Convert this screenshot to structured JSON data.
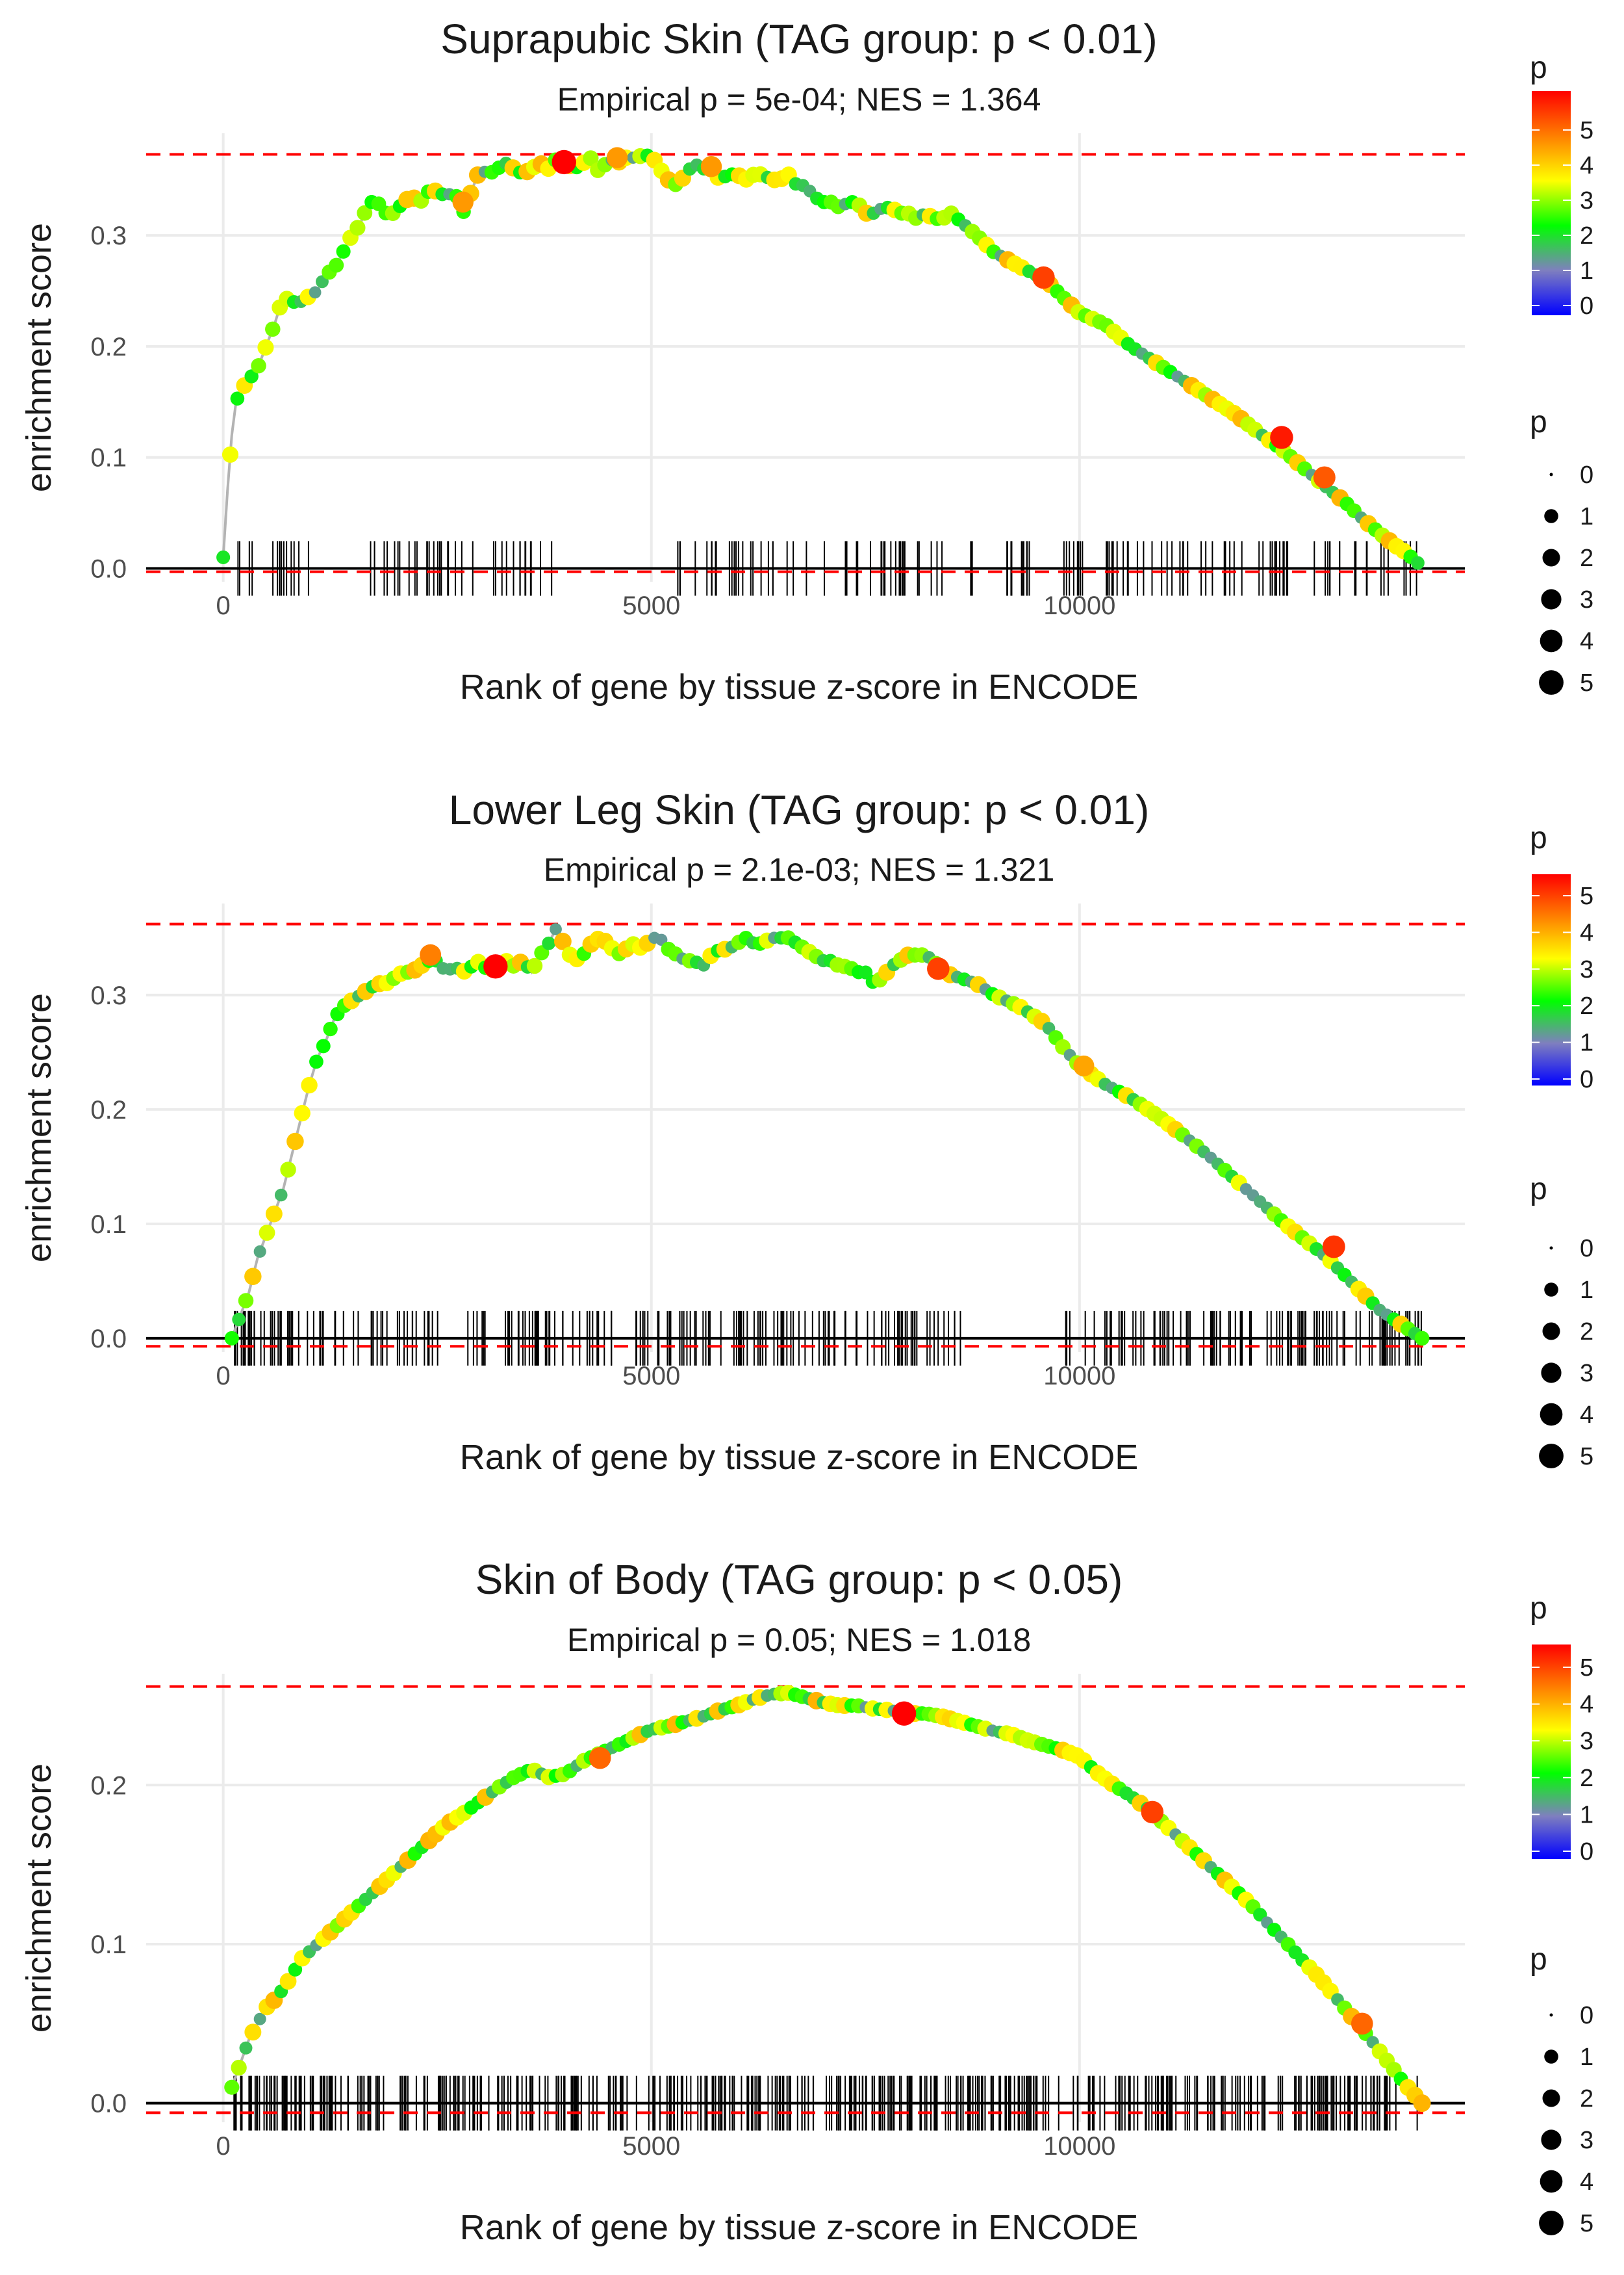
{
  "colors": {
    "threshold_line": "#ff0000",
    "curve_line": "#b3b3b3",
    "grid": "#ebebeb",
    "rug": "#000000",
    "gradient": [
      "#0000ff",
      "#7f7fbf",
      "#00ff00",
      "#ffff00",
      "#ff7f00",
      "#ff0000"
    ]
  },
  "chart_data": [
    {
      "type": "line",
      "title": "Suprapubic Skin (TAG group: p < 0.01)",
      "subtitle": "Empirical p = 5e-04; NES = 1.364",
      "xlabel": "Rank of gene by tissue z-score in ENCODE",
      "ylabel": "enrichment score",
      "xlim": [
        -900,
        14500
      ],
      "ylim": [
        -0.012,
        0.392
      ],
      "x_ticks": [
        0,
        5000,
        10000
      ],
      "x_tick_labels": [
        "0",
        "5000",
        "10000"
      ],
      "y_ticks": [
        0.0,
        0.1,
        0.2,
        0.3
      ],
      "y_tick_labels": [
        "0.0",
        "0.1",
        "0.2",
        "0.3"
      ],
      "threshold_lines": [
        0.373,
        -0.003
      ],
      "grid": true,
      "curve_x": [
        0,
        50,
        100,
        150,
        200,
        300,
        400,
        500,
        600,
        700,
        800,
        900,
        1000,
        1100,
        1200,
        1300,
        1400,
        1500,
        1600,
        1700,
        1800,
        1900,
        2000,
        2100,
        2200,
        2300,
        2400,
        2500,
        2600,
        2700,
        2800,
        2900,
        3000,
        3100,
        3200,
        3300,
        3400,
        3500,
        3600,
        3700,
        3800,
        3900,
        4000,
        4100,
        4200,
        4300,
        4400,
        4500,
        4600,
        4700,
        4800,
        4900,
        5000,
        5100,
        5200,
        5300,
        5400,
        5500,
        5600,
        5700,
        5800,
        5900,
        6000,
        6100,
        6200,
        6300,
        6400,
        6500,
        6600,
        6700,
        6800,
        6900,
        7000,
        7100,
        7200,
        7300,
        7400,
        7500,
        7600,
        7700,
        7800,
        7900,
        8000,
        8100,
        8200,
        8300,
        8400,
        8500,
        8800,
        9000,
        9300,
        9600,
        9800,
        10000,
        10300,
        10600,
        10900,
        11200,
        11500,
        11800,
        12100,
        12400,
        12700,
        12900,
        13100,
        13300,
        13500,
        13700,
        13800,
        13950
      ],
      "curve_y": [
        0.01,
        0.07,
        0.12,
        0.15,
        0.16,
        0.17,
        0.18,
        0.2,
        0.22,
        0.245,
        0.24,
        0.24,
        0.245,
        0.25,
        0.265,
        0.27,
        0.285,
        0.3,
        0.31,
        0.33,
        0.33,
        0.32,
        0.32,
        0.33,
        0.335,
        0.33,
        0.34,
        0.34,
        0.335,
        0.34,
        0.32,
        0.34,
        0.36,
        0.355,
        0.36,
        0.365,
        0.36,
        0.355,
        0.36,
        0.365,
        0.36,
        0.37,
        0.365,
        0.36,
        0.365,
        0.37,
        0.355,
        0.37,
        0.365,
        0.37,
        0.37,
        0.372,
        0.372,
        0.36,
        0.35,
        0.345,
        0.355,
        0.365,
        0.36,
        0.36,
        0.35,
        0.355,
        0.355,
        0.35,
        0.355,
        0.355,
        0.35,
        0.35,
        0.355,
        0.345,
        0.345,
        0.335,
        0.33,
        0.33,
        0.325,
        0.33,
        0.33,
        0.32,
        0.32,
        0.325,
        0.325,
        0.32,
        0.32,
        0.315,
        0.32,
        0.315,
        0.315,
        0.32,
        0.3,
        0.285,
        0.272,
        0.26,
        0.245,
        0.23,
        0.22,
        0.2,
        0.185,
        0.17,
        0.155,
        0.14,
        0.122,
        0.105,
        0.085,
        0.072,
        0.06,
        0.045,
        0.032,
        0.02,
        0.015,
        0.005
      ],
      "highlight_points": [
        {
          "x": 3980,
          "y": 0.366,
          "p": 5.5
        },
        {
          "x": 9580,
          "y": 0.262,
          "p": 4.5
        },
        {
          "x": 12360,
          "y": 0.118,
          "p": 4.8
        },
        {
          "x": 12860,
          "y": 0.082,
          "p": 4.3
        },
        {
          "x": 2800,
          "y": 0.33,
          "p": 3.8
        },
        {
          "x": 4600,
          "y": 0.37,
          "p": 3.8
        },
        {
          "x": 5700,
          "y": 0.362,
          "p": 3.8
        }
      ],
      "rug_ranges": [
        [
          0,
          1000
        ],
        [
          1500,
          3900
        ],
        [
          5300,
          6900
        ],
        [
          7000,
          8400
        ],
        [
          8700,
          13950
        ]
      ],
      "rug_count": 180,
      "color_legend": {
        "title": "p",
        "labels": [
          "5",
          "4",
          "3",
          "2",
          "1",
          "0"
        ]
      },
      "size_legend": {
        "title": "p",
        "labels": [
          "0",
          "1",
          "2",
          "3",
          "4",
          "5"
        ]
      }
    },
    {
      "type": "line",
      "title": "Lower Leg Skin (TAG group: p < 0.01)",
      "subtitle": "Empirical p = 2.1e-03; NES = 1.321",
      "xlabel": "Rank of gene by tissue z-score in ENCODE",
      "ylabel": "enrichment score",
      "xlim": [
        -900,
        14500
      ],
      "ylim": [
        -0.012,
        0.38
      ],
      "x_ticks": [
        0,
        5000,
        10000
      ],
      "x_tick_labels": [
        "0",
        "5000",
        "10000"
      ],
      "y_ticks": [
        0.0,
        0.1,
        0.2,
        0.3
      ],
      "y_tick_labels": [
        "0.0",
        "0.1",
        "0.2",
        "0.3"
      ],
      "threshold_lines": [
        0.362,
        -0.007
      ],
      "grid": true,
      "curve_x": [
        100,
        200,
        300,
        400,
        500,
        600,
        700,
        800,
        900,
        1000,
        1100,
        1200,
        1300,
        1400,
        1500,
        1600,
        1700,
        1800,
        1900,
        2000,
        2100,
        2200,
        2300,
        2400,
        2500,
        2600,
        2700,
        2800,
        2900,
        3000,
        3100,
        3200,
        3300,
        3400,
        3500,
        3600,
        3700,
        3800,
        3900,
        4000,
        4100,
        4200,
        4300,
        4400,
        4500,
        4600,
        4700,
        4800,
        4900,
        5000,
        5100,
        5200,
        5300,
        5400,
        5500,
        5600,
        5700,
        5800,
        5900,
        6000,
        6100,
        6200,
        6300,
        6400,
        6500,
        6600,
        6700,
        6800,
        6900,
        7000,
        7100,
        7200,
        7300,
        7400,
        7500,
        7600,
        7700,
        7800,
        7900,
        8000,
        8100,
        8200,
        8300,
        8400,
        8600,
        8800,
        9000,
        9300,
        9600,
        9800,
        10000,
        10300,
        10600,
        10900,
        11200,
        11500,
        11800,
        12100,
        12400,
        12700,
        12900,
        13100,
        13300,
        13500,
        13700,
        13900,
        14000
      ],
      "curve_y": [
        0.0,
        0.02,
        0.04,
        0.07,
        0.09,
        0.11,
        0.13,
        0.16,
        0.19,
        0.22,
        0.245,
        0.26,
        0.28,
        0.29,
        0.295,
        0.3,
        0.305,
        0.31,
        0.31,
        0.315,
        0.32,
        0.32,
        0.325,
        0.33,
        0.33,
        0.32,
        0.325,
        0.32,
        0.325,
        0.33,
        0.32,
        0.325,
        0.33,
        0.325,
        0.33,
        0.32,
        0.335,
        0.345,
        0.36,
        0.34,
        0.33,
        0.335,
        0.345,
        0.35,
        0.345,
        0.335,
        0.34,
        0.345,
        0.34,
        0.35,
        0.35,
        0.34,
        0.335,
        0.33,
        0.33,
        0.325,
        0.335,
        0.34,
        0.34,
        0.345,
        0.35,
        0.345,
        0.345,
        0.35,
        0.35,
        0.35,
        0.345,
        0.34,
        0.335,
        0.33,
        0.33,
        0.325,
        0.325,
        0.32,
        0.32,
        0.31,
        0.315,
        0.325,
        0.33,
        0.335,
        0.335,
        0.335,
        0.33,
        0.32,
        0.315,
        0.31,
        0.3,
        0.29,
        0.275,
        0.255,
        0.238,
        0.222,
        0.21,
        0.195,
        0.178,
        0.16,
        0.14,
        0.12,
        0.1,
        0.082,
        0.07,
        0.055,
        0.04,
        0.025,
        0.015,
        0.005,
        0.0
      ],
      "highlight_points": [
        {
          "x": 3180,
          "y": 0.325,
          "p": 5.5
        },
        {
          "x": 2420,
          "y": 0.335,
          "p": 4.0
        },
        {
          "x": 8350,
          "y": 0.323,
          "p": 4.5
        },
        {
          "x": 12970,
          "y": 0.08,
          "p": 4.6
        },
        {
          "x": 10050,
          "y": 0.238,
          "p": 3.7
        }
      ],
      "rug_ranges": [
        [
          100,
          2600
        ],
        [
          2800,
          4600
        ],
        [
          4800,
          8700
        ],
        [
          9800,
          14000
        ]
      ],
      "rug_count": 290,
      "color_legend": {
        "title": "p",
        "labels": [
          "5",
          "4",
          "3",
          "2",
          "1",
          "0"
        ]
      },
      "size_legend": {
        "title": "p",
        "labels": [
          "0",
          "1",
          "2",
          "3",
          "4",
          "5"
        ]
      }
    },
    {
      "type": "line",
      "title": "Skin of Body (TAG group: p < 0.05)",
      "subtitle": "Empirical p = 0.05; NES = 1.018",
      "xlabel": "Rank of gene by tissue z-score in ENCODE",
      "ylabel": "enrichment score",
      "xlim": [
        -900,
        14500
      ],
      "ylim": [
        -0.012,
        0.27
      ],
      "x_ticks": [
        0,
        5000,
        10000
      ],
      "x_tick_labels": [
        "0",
        "5000",
        "10000"
      ],
      "y_ticks": [
        0.0,
        0.1,
        0.2
      ],
      "y_tick_labels": [
        "0.0",
        "0.1",
        "0.2"
      ],
      "threshold_lines": [
        0.262,
        -0.006
      ],
      "grid": true,
      "curve_x": [
        100,
        200,
        300,
        400,
        500,
        600,
        700,
        800,
        900,
        1000,
        1200,
        1400,
        1600,
        1800,
        2000,
        2200,
        2400,
        2600,
        2800,
        3000,
        3200,
        3400,
        3600,
        3800,
        4000,
        4200,
        4400,
        4600,
        4800,
        5000,
        5200,
        5400,
        5600,
        5800,
        6000,
        6200,
        6400,
        6600,
        6800,
        7000,
        7200,
        7400,
        7600,
        7800,
        8000,
        8200,
        8400,
        8600,
        8800,
        9000,
        9200,
        9400,
        9600,
        9800,
        10000,
        10200,
        10400,
        10600,
        10800,
        11000,
        11200,
        11400,
        11600,
        11800,
        12000,
        12200,
        12400,
        12600,
        12800,
        13000,
        13200,
        13400,
        13600,
        13800,
        14000
      ],
      "curve_y": [
        0.01,
        0.025,
        0.04,
        0.05,
        0.06,
        0.065,
        0.072,
        0.08,
        0.09,
        0.095,
        0.105,
        0.115,
        0.125,
        0.135,
        0.145,
        0.155,
        0.165,
        0.175,
        0.182,
        0.19,
        0.198,
        0.205,
        0.21,
        0.205,
        0.207,
        0.215,
        0.22,
        0.225,
        0.23,
        0.235,
        0.237,
        0.24,
        0.243,
        0.247,
        0.25,
        0.254,
        0.257,
        0.258,
        0.255,
        0.252,
        0.25,
        0.25,
        0.248,
        0.247,
        0.245,
        0.245,
        0.243,
        0.24,
        0.237,
        0.234,
        0.232,
        0.228,
        0.225,
        0.222,
        0.218,
        0.208,
        0.2,
        0.193,
        0.185,
        0.175,
        0.165,
        0.155,
        0.145,
        0.135,
        0.125,
        0.113,
        0.102,
        0.09,
        0.079,
        0.066,
        0.053,
        0.04,
        0.026,
        0.012,
        0.0
      ],
      "highlight_points": [
        {
          "x": 7950,
          "y": 0.245,
          "p": 5.5
        },
        {
          "x": 4400,
          "y": 0.217,
          "p": 4.2
        },
        {
          "x": 10850,
          "y": 0.183,
          "p": 4.5
        },
        {
          "x": 13300,
          "y": 0.05,
          "p": 4.2
        }
      ],
      "rug_ranges": [
        [
          100,
          14000
        ]
      ],
      "rug_count": 470,
      "color_legend": {
        "title": "p",
        "labels": [
          "5",
          "4",
          "3",
          "2",
          "1",
          "0"
        ]
      },
      "size_legend": {
        "title": "p",
        "labels": [
          "0",
          "1",
          "2",
          "3",
          "4",
          "5"
        ]
      }
    }
  ]
}
